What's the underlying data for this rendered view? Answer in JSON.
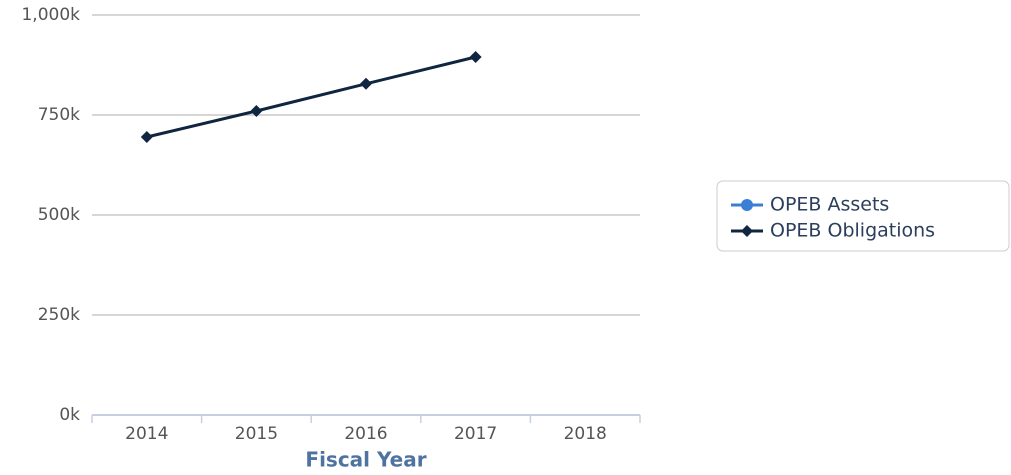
{
  "chart_data": {
    "type": "line",
    "x_label": "Fiscal Year",
    "categories": [
      "2014",
      "2015",
      "2016",
      "2017",
      "2018"
    ],
    "series": [
      {
        "name": "OPEB Assets",
        "color": "#3a7fd5",
        "marker": "circle",
        "values": [
          null,
          null,
          null,
          null,
          null
        ]
      },
      {
        "name": "OPEB Obligations",
        "color": "#0f2540",
        "marker": "diamond",
        "values": [
          695000,
          760000,
          828000,
          895000,
          null
        ]
      }
    ],
    "ylim": [
      0,
      1000000
    ],
    "yticks": [
      {
        "value": 0,
        "label": "0k"
      },
      {
        "value": 250000,
        "label": "250k"
      },
      {
        "value": 500000,
        "label": "500k"
      },
      {
        "value": 750000,
        "label": "750k"
      },
      {
        "value": 1000000,
        "label": "1,000k"
      }
    ],
    "grid": true,
    "legend": "right"
  }
}
